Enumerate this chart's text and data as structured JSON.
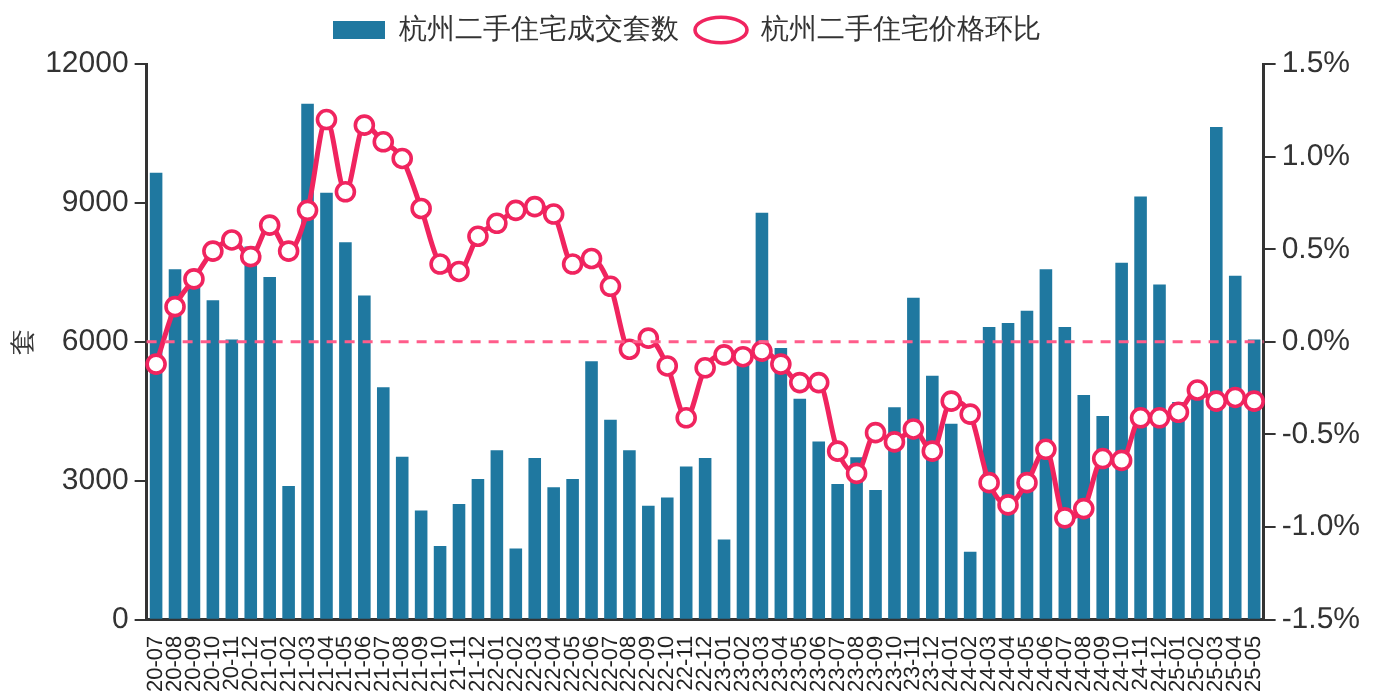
{
  "chart_data": {
    "type": "bar",
    "ylabel": "套",
    "categories": [
      "20-07",
      "20-08",
      "20-09",
      "20-10",
      "20-11",
      "20-12",
      "21-01",
      "21-02",
      "21-03",
      "21-04",
      "21-05",
      "21-06",
      "21-07",
      "21-08",
      "21-09",
      "21-10",
      "21-11",
      "21-12",
      "22-01",
      "22-02",
      "22-03",
      "22-04",
      "22-05",
      "22-06",
      "22-07",
      "22-08",
      "22-09",
      "22-10",
      "22-11",
      "22-12",
      "23-01",
      "23-02",
      "23-03",
      "23-04",
      "23-05",
      "23-06",
      "23-07",
      "23-08",
      "23-09",
      "23-10",
      "23-11",
      "23-12",
      "24-01",
      "24-02",
      "24-03",
      "24-04",
      "24-05",
      "24-06",
      "24-07",
      "24-08",
      "24-09",
      "24-10",
      "24-11",
      "24-12",
      "25-01",
      "25-02",
      "25-03",
      "25-04",
      "25-05"
    ],
    "series": [
      {
        "name": "杭州二手住宅成交套数",
        "color": "#1f78a0",
        "values": [
          9650,
          7570,
          7290,
          6900,
          6050,
          8060,
          7400,
          2890,
          11140,
          9220,
          8150,
          7000,
          5020,
          3520,
          2360,
          1590,
          2500,
          3040,
          3660,
          1540,
          3490,
          2860,
          3040,
          5580,
          4320,
          3660,
          2460,
          2640,
          3310,
          3490,
          1730,
          5510,
          8790,
          5870,
          4770,
          3850,
          2930,
          3510,
          2800,
          4590,
          6950,
          5270,
          4230,
          1470,
          6320,
          6410,
          6670,
          7570,
          6320,
          4850,
          4400,
          7710,
          9140,
          7240,
          4700,
          4800,
          10640,
          7430,
          6050
        ]
      },
      {
        "name": "杭州二手住宅价格环比",
        "type": "line",
        "axis": "y2",
        "color": "#f0245f",
        "values": [
          -0.12,
          0.19,
          0.34,
          0.49,
          0.55,
          0.46,
          0.63,
          0.49,
          0.71,
          1.2,
          0.81,
          1.17,
          1.08,
          0.99,
          0.72,
          0.42,
          0.38,
          0.57,
          0.64,
          0.71,
          0.73,
          0.69,
          0.42,
          0.45,
          0.3,
          -0.04,
          0.02,
          -0.13,
          -0.41,
          -0.14,
          -0.07,
          -0.08,
          -0.05,
          -0.12,
          -0.22,
          -0.22,
          -0.59,
          -0.71,
          -0.49,
          -0.54,
          -0.47,
          -0.59,
          -0.32,
          -0.39,
          -0.76,
          -0.88,
          -0.76,
          -0.58,
          -0.95,
          -0.9,
          -0.63,
          -0.64,
          -0.41,
          -0.41,
          -0.38,
          -0.26,
          -0.32,
          -0.3,
          -0.32
        ]
      }
    ],
    "ylim": [
      0,
      12000
    ],
    "yticks": [
      0,
      3000,
      6000,
      9000,
      12000
    ],
    "y2lim": [
      -1.5,
      1.5
    ],
    "y2ticks": [
      {
        "value": -1.5,
        "label": "-1.5%"
      },
      {
        "value": -1.0,
        "label": "-1.0%"
      },
      {
        "value": -0.5,
        "label": "-0.5%"
      },
      {
        "value": 0,
        "label": "0.0%"
      },
      {
        "value": 0.5,
        "label": "0.5%"
      },
      {
        "value": 1.0,
        "label": "1.0%"
      },
      {
        "value": 1.5,
        "label": "1.5%"
      }
    ],
    "ref_lines": [
      {
        "axis": "y2",
        "value": 0,
        "color": "#ff5c8a",
        "line_style": "dashed"
      }
    ],
    "legend": "top",
    "grid": false,
    "marker": "circle",
    "line_style": "solid"
  }
}
